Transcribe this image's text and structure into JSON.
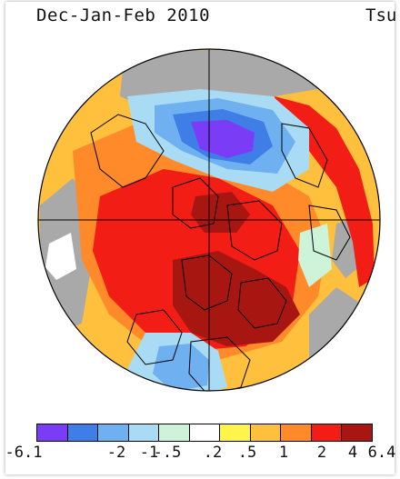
{
  "title": "Dec-Jan-Feb 2010",
  "source_label": "Tsu",
  "colors": {
    "missing": "#a9a9a9",
    "outline": "#000000"
  },
  "legend": {
    "bins": [
      {
        "color": "#7a3df5"
      },
      {
        "color": "#3f7ee6"
      },
      {
        "color": "#6fb1f0"
      },
      {
        "color": "#a9dcf4"
      },
      {
        "color": "#cdf3d8"
      },
      {
        "color": "#ffffff"
      },
      {
        "color": "#fff54a"
      },
      {
        "color": "#ffc13d"
      },
      {
        "color": "#ff8a2a"
      },
      {
        "color": "#f21d14"
      },
      {
        "color": "#a81612"
      },
      {
        "color": "#a81612"
      }
    ],
    "ticks": [
      "-6.1",
      "-2",
      "-1",
      "-.5",
      ".2",
      ".5",
      "1",
      "2",
      "4",
      "6.4"
    ]
  },
  "map_regions": [
    {
      "name": "background-warm",
      "value": "1"
    },
    {
      "name": "region-arctic-warm",
      "value": "2"
    },
    {
      "name": "region-canada-hot",
      "value": "4"
    },
    {
      "name": "region-siberia-cold",
      "value": "-2"
    },
    {
      "name": "region-siberia-core",
      "value": "-6.1"
    },
    {
      "name": "region-greenland",
      "value": "4"
    },
    {
      "name": "region-eurasia-cold",
      "value": "-1"
    },
    {
      "name": "region-pacific-warm",
      "value": "2"
    },
    {
      "name": "region-missing",
      "value": "missing"
    }
  ]
}
